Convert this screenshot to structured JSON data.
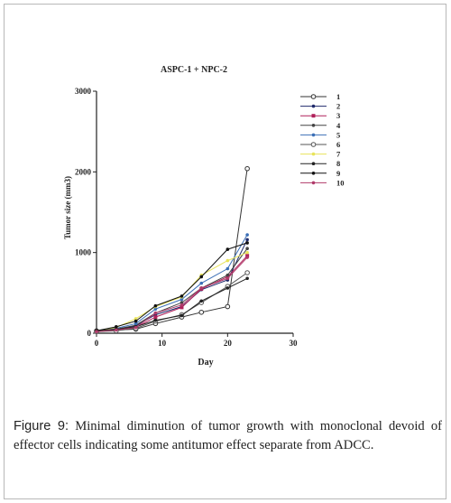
{
  "caption": {
    "label": "Figure 9:",
    "text": " Minimal diminution of tumor growth with monoclonal devoid of effector cells indicating some antitumor effect separate from ADCC."
  },
  "chart_data": {
    "type": "line",
    "title": "ASPC-1 + NPC-2",
    "xlabel": "Day",
    "ylabel": "Tumor size (mm3)",
    "xlim": [
      0,
      30
    ],
    "ylim": [
      0,
      3000
    ],
    "xticks": [
      "0",
      "10",
      "20",
      "30"
    ],
    "yticks": [
      "0",
      "1000",
      "2000",
      "3000"
    ],
    "legend_position": "top-right",
    "grid": false,
    "series": [
      {
        "name": "1",
        "color": "#333333",
        "marker": "open-circle",
        "x": [
          0,
          3,
          6,
          9,
          13,
          16,
          20,
          23
        ],
        "y": [
          30,
          40,
          50,
          120,
          200,
          260,
          330,
          2040
        ]
      },
      {
        "name": "2",
        "color": "#1f2a6b",
        "marker": "dot",
        "x": [
          0,
          3,
          6,
          9,
          13,
          16,
          20,
          23
        ],
        "y": [
          30,
          50,
          90,
          230,
          330,
          540,
          660,
          1160
        ]
      },
      {
        "name": "3",
        "color": "#b0205a",
        "marker": "square",
        "x": [
          0,
          3,
          6,
          9,
          13,
          16,
          20,
          23
        ],
        "y": [
          20,
          40,
          70,
          200,
          320,
          550,
          700,
          960
        ]
      },
      {
        "name": "4",
        "color": "#444444",
        "marker": "dot",
        "x": [
          0,
          3,
          6,
          9,
          13,
          16,
          20,
          23
        ],
        "y": [
          30,
          50,
          100,
          250,
          380,
          560,
          720,
          1050
        ]
      },
      {
        "name": "5",
        "color": "#3b6fb6",
        "marker": "dot",
        "x": [
          0,
          3,
          6,
          9,
          13,
          16,
          20,
          23
        ],
        "y": [
          30,
          60,
          120,
          300,
          420,
          620,
          800,
          1220
        ]
      },
      {
        "name": "6",
        "color": "#555555",
        "marker": "open-circle",
        "x": [
          0,
          3,
          6,
          9,
          13,
          16,
          20,
          23
        ],
        "y": [
          20,
          30,
          60,
          150,
          230,
          380,
          580,
          750
        ]
      },
      {
        "name": "7",
        "color": "#e8e35a",
        "marker": "dot",
        "x": [
          0,
          3,
          6,
          9,
          13,
          16,
          20,
          23
        ],
        "y": [
          30,
          70,
          180,
          330,
          450,
          720,
          900,
          1000
        ]
      },
      {
        "name": "8",
        "color": "#222222",
        "marker": "dot",
        "x": [
          0,
          3,
          6,
          9,
          13,
          16,
          20,
          23
        ],
        "y": [
          30,
          50,
          80,
          160,
          220,
          400,
          560,
          680
        ]
      },
      {
        "name": "9",
        "color": "#111111",
        "marker": "dot",
        "x": [
          0,
          3,
          6,
          9,
          13,
          16,
          20,
          23
        ],
        "y": [
          30,
          80,
          150,
          340,
          460,
          700,
          1040,
          1120
        ]
      },
      {
        "name": "10",
        "color": "#b03a6a",
        "marker": "dot",
        "x": [
          0,
          3,
          6,
          9,
          13,
          16,
          20,
          23
        ],
        "y": [
          20,
          40,
          70,
          250,
          350,
          560,
          680,
          940
        ]
      }
    ]
  }
}
